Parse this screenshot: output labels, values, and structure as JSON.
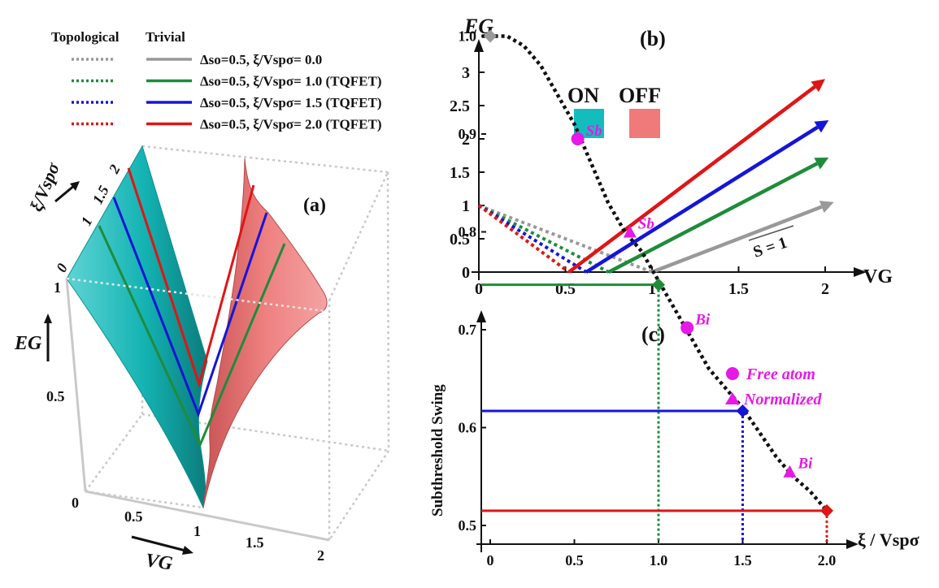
{
  "legend": {
    "header_topological": "Topological",
    "header_trivial": "Trivial",
    "entries": [
      {
        "color": "#999999",
        "label": "Δso=0.5, ξ/Vspσ= 0.0"
      },
      {
        "color": "#1e8c3a",
        "label": "Δso=0.5, ξ/Vspσ= 1.0 (TQFET)"
      },
      {
        "color": "#1515d8",
        "label": "Δso=0.5, ξ/Vspσ= 1.5 (TQFET)"
      },
      {
        "color": "#e01515",
        "label": "Δso=0.5, ξ/Vspσ= 2.0 (TQFET)"
      }
    ]
  },
  "colors": {
    "on": "#14bdbd",
    "off": "#f07a7a",
    "gray": "#999999",
    "green": "#1e8c3a",
    "blue": "#1515d8",
    "red": "#e01515",
    "magenta": "#e619e6",
    "ink": "#111111"
  },
  "chart_data": [
    {
      "id": "a",
      "type": "surface",
      "panel_label": "(a)",
      "xlabel": "VG",
      "ylabel": "EG",
      "zlabel": "ξ/Vspσ",
      "x_ticks": [
        "0",
        "0.5",
        "1",
        "1.5",
        "2"
      ],
      "y_ticks": [
        "0.5",
        "1"
      ],
      "z_ticks": [
        "0",
        "1",
        "1.5",
        "2"
      ],
      "series": [
        {
          "name": "ξ/Vspσ = 1.0",
          "color": "#1e8c3a",
          "vg_min": 0.75
        },
        {
          "name": "ξ/Vspσ = 1.5",
          "color": "#1515d8",
          "vg_min": 0.62
        },
        {
          "name": "ξ/Vspσ = 2.0",
          "color": "#e01515",
          "vg_min": 0.52
        }
      ]
    },
    {
      "id": "b",
      "type": "line",
      "panel_label": "(b)",
      "xlabel": "VG",
      "ylabel": "EG",
      "xlim": [
        0,
        2.2
      ],
      "ylim": [
        0,
        3.4
      ],
      "x_ticks": [
        0,
        0.5,
        1,
        1.5,
        2
      ],
      "x_tick_labels": [
        "0",
        "0.5",
        "1",
        "1.5",
        "2"
      ],
      "y_ticks": [
        0,
        0.5,
        1,
        1.5,
        2,
        2.5,
        3
      ],
      "y_tick_labels": [
        "0",
        "0.5",
        "1",
        "1.5",
        "2",
        "2.5",
        "3"
      ],
      "on_label": "ON",
      "off_label": "OFF",
      "slope_label": "S = 1",
      "series": [
        {
          "name": "ξ/Vspσ = 0.0",
          "color": "#999999",
          "vmin": 1.0,
          "topological": [
            [
              0,
              1
            ],
            [
              1.0,
              0
            ]
          ],
          "trivial": [
            [
              1.0,
              0
            ],
            [
              2.05,
              1.05
            ]
          ]
        },
        {
          "name": "ξ/Vspσ = 1.0",
          "color": "#1e8c3a",
          "vmin": 0.75,
          "topological": [
            [
              0,
              1
            ],
            [
              0.75,
              0
            ]
          ],
          "trivial": [
            [
              0.75,
              0
            ],
            [
              2.02,
              1.72
            ]
          ]
        },
        {
          "name": "ξ/Vspσ = 1.5",
          "color": "#1515d8",
          "vmin": 0.62,
          "topological": [
            [
              0,
              1
            ],
            [
              0.62,
              0
            ]
          ],
          "trivial": [
            [
              0.62,
              0
            ],
            [
              2.02,
              2.28
            ]
          ]
        },
        {
          "name": "ξ/Vspσ = 2.0",
          "color": "#e01515",
          "vmin": 0.52,
          "topological": [
            [
              0,
              1
            ],
            [
              0.52,
              0
            ]
          ],
          "trivial": [
            [
              0.52,
              0
            ],
            [
              2.0,
              2.9
            ]
          ]
        }
      ]
    },
    {
      "id": "c",
      "type": "line",
      "panel_label": "(c)",
      "xlabel": "ξ / Vspσ",
      "ylabel": "Subthreshold Swing",
      "xlim": [
        -0.05,
        2.2
      ],
      "ylim": [
        0.46,
        1.05
      ],
      "x_ticks": [
        0,
        0.5,
        1,
        1.5,
        2
      ],
      "x_tick_labels": [
        "0",
        "0.5",
        "1.0",
        "1.5",
        "2.0"
      ],
      "y_ticks": [
        0.5,
        0.6,
        0.7,
        0.8,
        0.9,
        1.0
      ],
      "y_tick_labels": [
        "0.5",
        "0.6",
        "0.7",
        "0.8",
        "0.9",
        "1.0"
      ],
      "curve": [
        [
          -0.05,
          1.0
        ],
        [
          0,
          1.0
        ],
        [
          0.1,
          1.0
        ],
        [
          0.2,
          0.99
        ],
        [
          0.3,
          0.97
        ],
        [
          0.4,
          0.94
        ],
        [
          0.5,
          0.91
        ],
        [
          0.6,
          0.87
        ],
        [
          0.7,
          0.83
        ],
        [
          0.8,
          0.8
        ],
        [
          0.9,
          0.78
        ],
        [
          1.0,
          0.75
        ],
        [
          1.1,
          0.72
        ],
        [
          1.2,
          0.69
        ],
        [
          1.3,
          0.66
        ],
        [
          1.4,
          0.64
        ],
        [
          1.5,
          0.62
        ],
        [
          1.6,
          0.595
        ],
        [
          1.7,
          0.57
        ],
        [
          1.8,
          0.55
        ],
        [
          1.9,
          0.535
        ],
        [
          2.0,
          0.515
        ]
      ],
      "diamonds": [
        {
          "x": 0.0,
          "y": 1.0,
          "color": "#999999"
        },
        {
          "x": 1.0,
          "y": 0.746,
          "color": "#1e8c3a"
        },
        {
          "x": 1.5,
          "y": 0.617,
          "color": "#1515d8"
        },
        {
          "x": 2.0,
          "y": 0.515,
          "color": "#e01515"
        }
      ],
      "free_atom": [
        {
          "x": 0.52,
          "y": 0.895,
          "label": "Sb"
        },
        {
          "x": 1.17,
          "y": 0.702,
          "label": "Bi"
        }
      ],
      "normalized": [
        {
          "x": 0.83,
          "y": 0.8,
          "label": "Sb"
        },
        {
          "x": 1.78,
          "y": 0.555,
          "label": "Bi"
        }
      ],
      "legend": {
        "free_atom": "Free atom",
        "normalized": "Normalized"
      }
    }
  ]
}
